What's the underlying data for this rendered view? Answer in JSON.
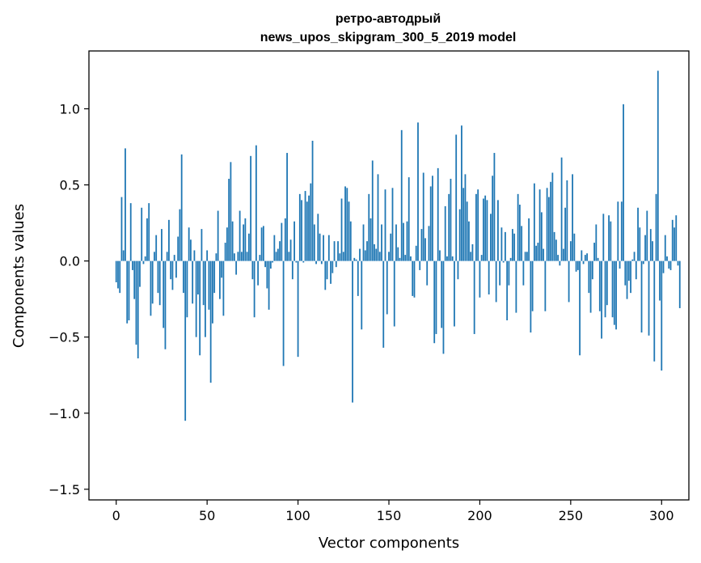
{
  "chart_data": {
    "type": "bar",
    "title_line1": "ретро-автодрый",
    "title_line2": "news_upos_skipgram_300_5_2019 model",
    "xlabel": "Vector components",
    "ylabel": "Components values",
    "xlim": [
      -15,
      315
    ],
    "ylim": [
      -1.57,
      1.38
    ],
    "xticks": [
      0,
      50,
      100,
      150,
      200,
      250,
      300
    ],
    "xtick_labels": [
      "0",
      "50",
      "100",
      "150",
      "200",
      "250",
      "300"
    ],
    "yticks": [
      -1.5,
      -1.0,
      -0.5,
      0.0,
      0.5,
      1.0
    ],
    "ytick_labels": [
      "−1.5",
      "−1.0",
      "−0.5",
      "0.0",
      "0.5",
      "1.0"
    ],
    "bar_color": "#1f77b4",
    "values": [
      -0.14,
      -0.18,
      -0.21,
      0.42,
      0.07,
      0.74,
      -0.41,
      -0.39,
      0.38,
      -0.06,
      -0.25,
      -0.55,
      -0.64,
      -0.17,
      0.35,
      -0.02,
      0.03,
      0.28,
      0.38,
      -0.36,
      -0.28,
      0.06,
      0.17,
      -0.21,
      -0.29,
      0.21,
      -0.44,
      -0.58,
      0.06,
      0.27,
      -0.12,
      -0.19,
      0.04,
      -0.11,
      0.16,
      0.34,
      0.7,
      -0.21,
      -1.05,
      -0.37,
      0.22,
      0.14,
      -0.28,
      0.07,
      -0.5,
      -0.22,
      -0.62,
      0.21,
      -0.29,
      -0.5,
      0.07,
      -0.32,
      -0.8,
      -0.41,
      -0.21,
      0.05,
      0.33,
      -0.25,
      -0.11,
      -0.36,
      0.12,
      0.22,
      0.54,
      0.65,
      0.26,
      0.05,
      -0.09,
      0.06,
      0.33,
      0.06,
      0.24,
      0.28,
      0.06,
      0.18,
      0.69,
      -0.12,
      -0.37,
      0.76,
      -0.16,
      0.04,
      0.22,
      0.23,
      -0.04,
      -0.18,
      -0.32,
      -0.05,
      -0.01,
      0.17,
      0.06,
      0.08,
      0.13,
      0.25,
      -0.69,
      0.28,
      0.71,
      0.06,
      0.14,
      -0.12,
      0.26,
      -0.01,
      -0.63,
      0.44,
      0.4,
      -0.01,
      0.46,
      0.39,
      0.43,
      0.51,
      0.79,
      0.24,
      -0.02,
      0.31,
      0.18,
      -0.02,
      0.17,
      -0.19,
      -0.12,
      0.17,
      -0.15,
      -0.08,
      0.13,
      -0.04,
      0.13,
      0.05,
      0.41,
      0.06,
      0.49,
      0.48,
      0.39,
      0.26,
      -0.93,
      0.02,
      0.01,
      -0.23,
      0.08,
      -0.45,
      0.24,
      0.07,
      0.13,
      0.44,
      0.28,
      0.66,
      0.11,
      0.08,
      0.57,
      0.06,
      0.24,
      -0.57,
      0.47,
      -0.35,
      0.06,
      0.18,
      0.48,
      -0.43,
      0.24,
      0.09,
      0.02,
      0.86,
      0.25,
      0.04,
      0.26,
      0.55,
      0.03,
      -0.23,
      -0.24,
      0.1,
      0.91,
      -0.06,
      0.21,
      0.58,
      0.15,
      -0.16,
      0.23,
      0.49,
      0.56,
      -0.54,
      -0.48,
      0.61,
      0.07,
      -0.44,
      -0.61,
      0.36,
      0.03,
      0.44,
      0.54,
      0.03,
      -0.43,
      0.83,
      -0.12,
      0.34,
      0.89,
      0.48,
      0.57,
      0.39,
      0.26,
      0.06,
      0.11,
      -0.48,
      0.44,
      0.47,
      -0.24,
      0.04,
      0.41,
      0.43,
      0.4,
      -0.22,
      0.31,
      0.56,
      0.71,
      -0.27,
      0.4,
      -0.16,
      0.22,
      -0.01,
      0.19,
      -0.39,
      -0.16,
      0.02,
      0.21,
      0.18,
      -0.34,
      0.44,
      0.37,
      0.23,
      -0.16,
      0.06,
      0.06,
      0.28,
      -0.47,
      -0.33,
      0.51,
      0.1,
      0.12,
      0.47,
      0.32,
      0.08,
      -0.33,
      0.48,
      0.42,
      0.52,
      0.58,
      0.19,
      0.14,
      0.04,
      -0.03,
      0.68,
      0.08,
      0.35,
      0.53,
      -0.27,
      0.13,
      0.57,
      0.18,
      -0.07,
      -0.06,
      -0.62,
      0.07,
      -0.02,
      0.04,
      0.05,
      -0.21,
      -0.34,
      -0.12,
      0.12,
      0.24,
      0.02,
      -0.33,
      -0.51,
      0.31,
      -0.37,
      -0.29,
      0.3,
      0.26,
      -0.37,
      -0.42,
      -0.45,
      0.39,
      -0.05,
      0.39,
      1.03,
      -0.16,
      -0.25,
      -0.13,
      -0.21,
      0.01,
      0.06,
      -0.12,
      0.35,
      0.22,
      -0.47,
      -0.02,
      0.17,
      0.33,
      -0.49,
      0.21,
      0.13,
      -0.66,
      0.44,
      1.25,
      -0.26,
      -0.72,
      -0.08,
      0.17,
      0.03,
      -0.05,
      -0.06,
      0.27,
      0.22,
      0.3,
      -0.03,
      -0.31
    ]
  }
}
